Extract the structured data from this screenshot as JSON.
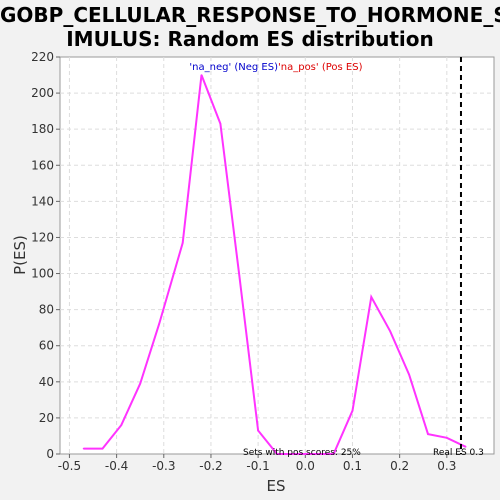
{
  "title_line1": "GOBP_CELLULAR_RESPONSE_TO_HORMONE_ST",
  "title_line2": "IMULUS: Random ES distribution",
  "chart_data": {
    "type": "line",
    "xlabel": "ES",
    "ylabel": "P(ES)",
    "xlim": [
      -0.52,
      0.4
    ],
    "ylim": [
      0,
      220
    ],
    "xticks": [
      "-0.5",
      "-0.4",
      "-0.3",
      "-0.2",
      "-0.1",
      "0.0",
      "0.1",
      "0.2",
      "0.3"
    ],
    "xtick_values": [
      -0.5,
      -0.4,
      -0.3,
      -0.2,
      -0.1,
      0.0,
      0.1,
      0.2,
      0.3
    ],
    "yticks": [
      "0",
      "20",
      "40",
      "60",
      "80",
      "100",
      "120",
      "140",
      "160",
      "180",
      "200",
      "220"
    ],
    "ytick_values": [
      0,
      20,
      40,
      60,
      80,
      100,
      120,
      140,
      160,
      180,
      200,
      220
    ],
    "grid": true,
    "series": [
      {
        "color": "#ff33ff",
        "x": [
          -0.47,
          -0.43,
          -0.39,
          -0.35,
          -0.31,
          -0.26,
          -0.22,
          -0.18,
          -0.14,
          -0.1,
          -0.06,
          -0.02,
          0.02,
          0.06,
          0.1,
          0.14,
          0.18,
          0.22,
          0.26,
          0.3,
          0.34
        ],
        "y": [
          3,
          3,
          16,
          39,
          72,
          117,
          210,
          183,
          99,
          13,
          0,
          0,
          0,
          0,
          24,
          87,
          68,
          44,
          11,
          9,
          4
        ]
      }
    ],
    "legend": [
      {
        "label": "'na_neg' (Neg ES)",
        "color": "#0000cc"
      },
      {
        "label": "'na_pos' (Pos ES)",
        "color": "#dd0000"
      }
    ],
    "real_es_line": {
      "x": 0.33,
      "color": "#000000"
    },
    "annotations": {
      "pos_scores": "Sets with pos scores: 25%",
      "real_es": "Real ES 0.3"
    }
  }
}
